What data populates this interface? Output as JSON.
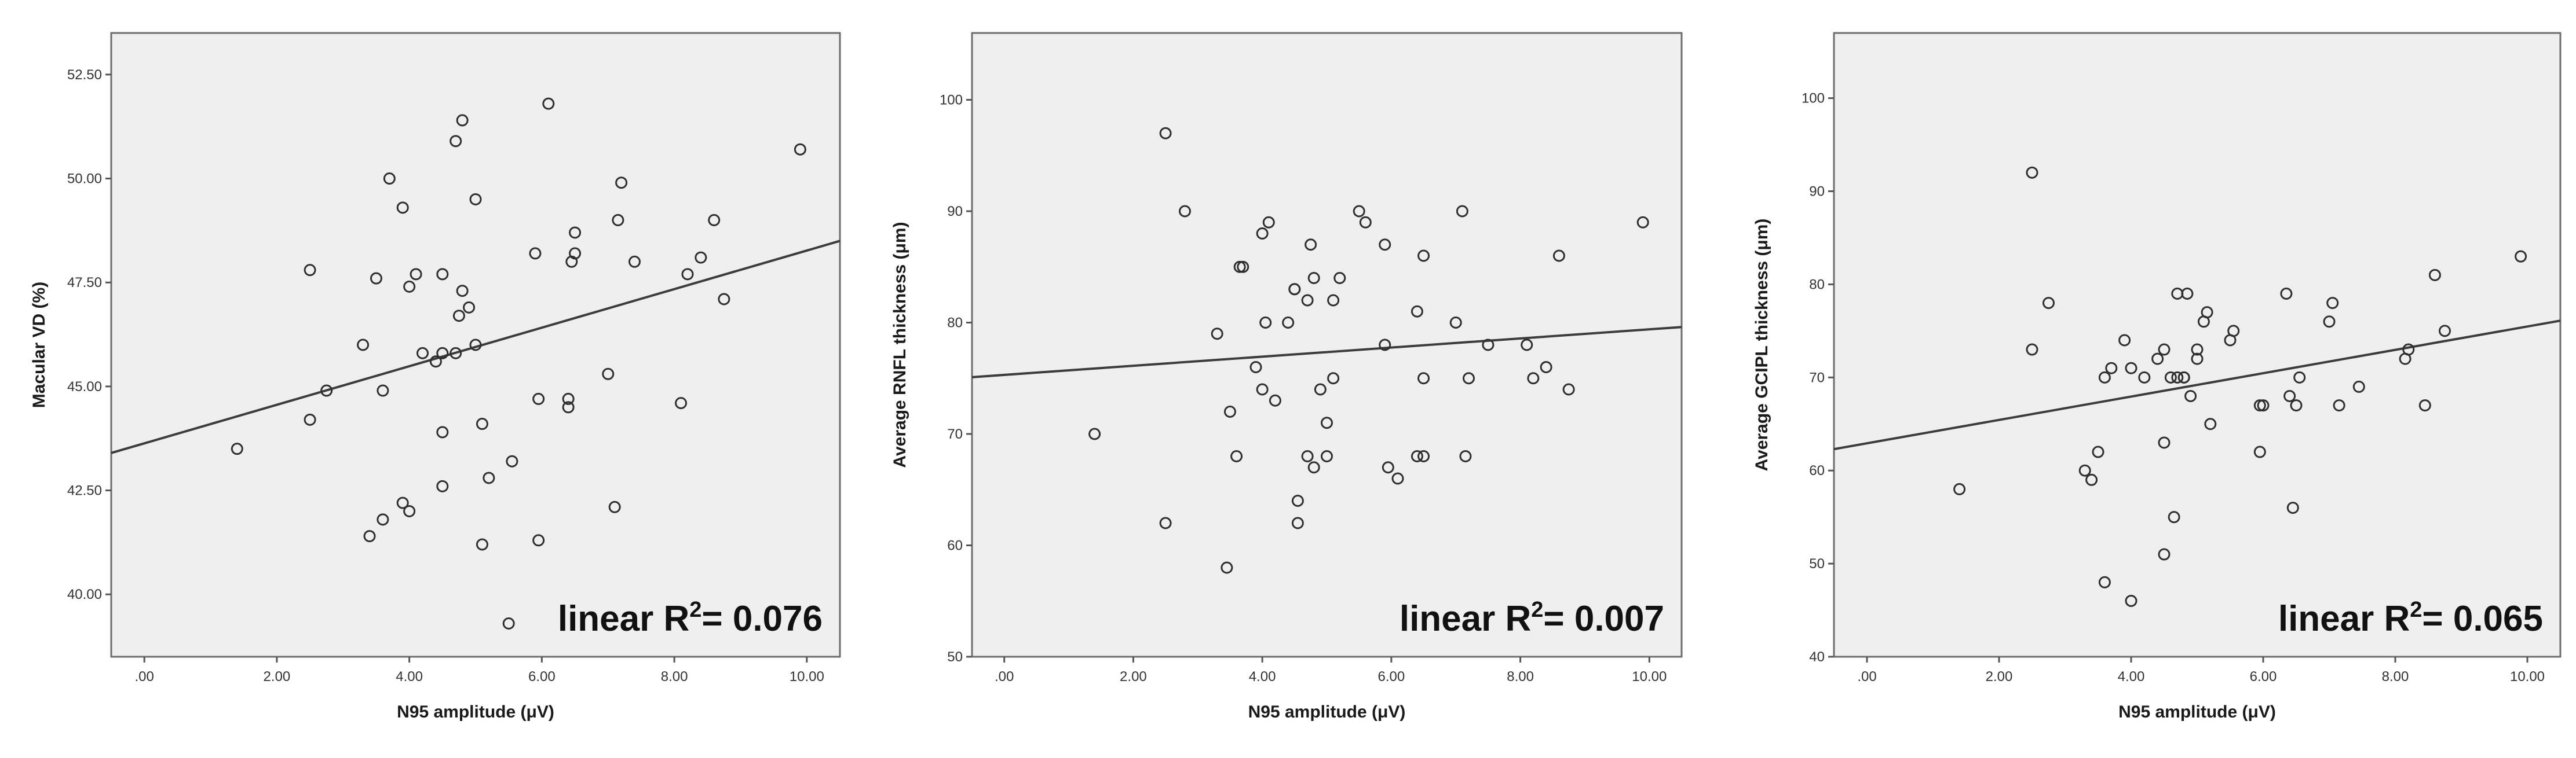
{
  "chart_data": [
    {
      "type": "scatter",
      "xlabel": "N95 amplitude (μV)",
      "ylabel": "Macular VD (%)",
      "xlim": [
        -0.5,
        10.5
      ],
      "ylim": [
        38.5,
        53.5
      ],
      "xticks": [
        ".00",
        "2.00",
        "4.00",
        "6.00",
        "8.00",
        "10.00"
      ],
      "xtick_values": [
        0,
        2,
        4,
        6,
        8,
        10
      ],
      "yticks": [
        "40.00",
        "42.50",
        "45.00",
        "47.50",
        "50.00",
        "52.50"
      ],
      "ytick_values": [
        40,
        42.5,
        45,
        47.5,
        50,
        52.5
      ],
      "annotation": {
        "prefix": "linear R",
        "sup": "2",
        "suffix": "= 0.076"
      },
      "fit_line": {
        "x": [
          -0.5,
          10.5
        ],
        "y": [
          43.4,
          48.5
        ]
      },
      "points": [
        [
          1.4,
          43.5
        ],
        [
          2.5,
          47.8
        ],
        [
          2.5,
          44.2
        ],
        [
          2.75,
          44.9
        ],
        [
          3.3,
          46.0
        ],
        [
          3.4,
          41.4
        ],
        [
          3.5,
          47.6
        ],
        [
          3.6,
          44.9
        ],
        [
          3.6,
          41.8
        ],
        [
          3.7,
          50.0
        ],
        [
          3.9,
          42.2
        ],
        [
          3.9,
          49.3
        ],
        [
          4.0,
          47.4
        ],
        [
          4.0,
          42.0
        ],
        [
          4.1,
          47.7
        ],
        [
          4.2,
          45.8
        ],
        [
          4.4,
          45.6
        ],
        [
          4.5,
          47.7
        ],
        [
          4.5,
          43.9
        ],
        [
          4.5,
          42.6
        ],
        [
          4.5,
          45.8
        ],
        [
          4.7,
          45.8
        ],
        [
          4.7,
          50.9
        ],
        [
          4.75,
          46.7
        ],
        [
          4.8,
          51.4
        ],
        [
          4.8,
          47.3
        ],
        [
          4.9,
          46.9
        ],
        [
          5.0,
          49.5
        ],
        [
          5.0,
          46.0
        ],
        [
          5.1,
          41.2
        ],
        [
          5.1,
          44.1
        ],
        [
          5.2,
          42.8
        ],
        [
          5.5,
          39.3
        ],
        [
          5.55,
          43.2
        ],
        [
          5.9,
          48.2
        ],
        [
          5.95,
          44.7
        ],
        [
          5.95,
          41.3
        ],
        [
          6.1,
          51.8
        ],
        [
          6.4,
          44.7
        ],
        [
          6.4,
          44.5
        ],
        [
          6.45,
          48.0
        ],
        [
          6.5,
          48.2
        ],
        [
          6.5,
          48.7
        ],
        [
          7.0,
          45.3
        ],
        [
          7.1,
          42.1
        ],
        [
          7.15,
          49.0
        ],
        [
          7.2,
          49.9
        ],
        [
          7.4,
          48.0
        ],
        [
          8.1,
          44.6
        ],
        [
          8.2,
          47.7
        ],
        [
          8.4,
          48.1
        ],
        [
          8.6,
          49.0
        ],
        [
          8.75,
          47.1
        ],
        [
          9.9,
          50.7
        ]
      ]
    },
    {
      "type": "scatter",
      "xlabel": "N95 amplitude (μV)",
      "ylabel": "Average RNFL thickness (μm)",
      "xlim": [
        -0.5,
        10.5
      ],
      "ylim": [
        50,
        106
      ],
      "xticks": [
        ".00",
        "2.00",
        "4.00",
        "6.00",
        "8.00",
        "10.00"
      ],
      "xtick_values": [
        0,
        2,
        4,
        6,
        8,
        10
      ],
      "yticks": [
        "50",
        "60",
        "70",
        "80",
        "90",
        "100"
      ],
      "ytick_values": [
        50,
        60,
        70,
        80,
        90,
        100
      ],
      "annotation": {
        "prefix": "linear R",
        "sup": "2",
        "suffix": "= 0.007"
      },
      "fit_line": {
        "x": [
          -0.5,
          10.5
        ],
        "y": [
          75.1,
          79.6
        ]
      },
      "points": [
        [
          1.4,
          70
        ],
        [
          2.5,
          97
        ],
        [
          2.5,
          62
        ],
        [
          2.8,
          90
        ],
        [
          3.3,
          79
        ],
        [
          3.45,
          58
        ],
        [
          3.5,
          72
        ],
        [
          3.6,
          68
        ],
        [
          3.65,
          85
        ],
        [
          3.7,
          85
        ],
        [
          3.9,
          76
        ],
        [
          4.0,
          74
        ],
        [
          4.0,
          88
        ],
        [
          4.05,
          80
        ],
        [
          4.1,
          89
        ],
        [
          4.2,
          73
        ],
        [
          4.4,
          80
        ],
        [
          4.5,
          83
        ],
        [
          4.5,
          83
        ],
        [
          4.55,
          62
        ],
        [
          4.55,
          64
        ],
        [
          4.7,
          82
        ],
        [
          4.7,
          68
        ],
        [
          4.75,
          87
        ],
        [
          4.8,
          67
        ],
        [
          4.8,
          84
        ],
        [
          4.9,
          74
        ],
        [
          5.0,
          71
        ],
        [
          5.0,
          68
        ],
        [
          5.1,
          82
        ],
        [
          5.1,
          75
        ],
        [
          5.2,
          84
        ],
        [
          5.5,
          90
        ],
        [
          5.6,
          89
        ],
        [
          5.9,
          87
        ],
        [
          5.9,
          78
        ],
        [
          5.95,
          67
        ],
        [
          6.1,
          66
        ],
        [
          6.4,
          68
        ],
        [
          6.4,
          81
        ],
        [
          6.5,
          68
        ],
        [
          6.5,
          75
        ],
        [
          6.5,
          86
        ],
        [
          7.0,
          80
        ],
        [
          7.1,
          90
        ],
        [
          7.15,
          68
        ],
        [
          7.2,
          75
        ],
        [
          7.5,
          78
        ],
        [
          8.1,
          78
        ],
        [
          8.2,
          75
        ],
        [
          8.4,
          76
        ],
        [
          8.6,
          86
        ],
        [
          8.75,
          74
        ],
        [
          9.9,
          89
        ]
      ]
    },
    {
      "type": "scatter",
      "xlabel": "N95 amplitude (μV)",
      "ylabel": "Average GCIPL thickness (μm)",
      "xlim": [
        -0.5,
        10.5
      ],
      "ylim": [
        40,
        107
      ],
      "xticks": [
        ".00",
        "2.00",
        "4.00",
        "6.00",
        "8.00",
        "10.00"
      ],
      "xtick_values": [
        0,
        2,
        4,
        6,
        8,
        10
      ],
      "yticks": [
        "40",
        "50",
        "60",
        "70",
        "80",
        "90",
        "100"
      ],
      "ytick_values": [
        40,
        50,
        60,
        70,
        80,
        90,
        100
      ],
      "annotation": {
        "prefix": "linear R",
        "sup": "2",
        "suffix": "= 0.065"
      },
      "fit_line": {
        "x": [
          -0.5,
          10.5
        ],
        "y": [
          62.3,
          76.1
        ]
      },
      "points": [
        [
          1.4,
          58
        ],
        [
          2.5,
          92
        ],
        [
          2.5,
          73
        ],
        [
          2.75,
          78
        ],
        [
          3.3,
          60
        ],
        [
          3.4,
          59
        ],
        [
          3.5,
          62
        ],
        [
          3.6,
          48
        ],
        [
          3.6,
          70
        ],
        [
          3.7,
          71
        ],
        [
          3.9,
          74
        ],
        [
          4.0,
          71
        ],
        [
          4.0,
          46
        ],
        [
          4.2,
          70
        ],
        [
          4.4,
          72
        ],
        [
          4.5,
          63
        ],
        [
          4.5,
          51
        ],
        [
          4.5,
          73
        ],
        [
          4.6,
          70
        ],
        [
          4.65,
          55
        ],
        [
          4.7,
          79
        ],
        [
          4.7,
          70
        ],
        [
          4.8,
          70
        ],
        [
          4.8,
          70
        ],
        [
          4.85,
          79
        ],
        [
          4.9,
          68
        ],
        [
          5.0,
          72
        ],
        [
          5.0,
          73
        ],
        [
          5.1,
          76
        ],
        [
          5.15,
          77
        ],
        [
          5.2,
          65
        ],
        [
          5.5,
          74
        ],
        [
          5.55,
          75
        ],
        [
          5.95,
          67
        ],
        [
          5.95,
          62
        ],
        [
          6.0,
          67
        ],
        [
          6.35,
          79
        ],
        [
          6.4,
          68
        ],
        [
          6.45,
          56
        ],
        [
          6.5,
          67
        ],
        [
          6.55,
          70
        ],
        [
          7.0,
          76
        ],
        [
          7.05,
          78
        ],
        [
          7.15,
          67
        ],
        [
          7.45,
          69
        ],
        [
          8.15,
          72
        ],
        [
          8.2,
          73
        ],
        [
          8.45,
          67
        ],
        [
          8.6,
          81
        ],
        [
          8.75,
          75
        ],
        [
          9.9,
          83
        ]
      ]
    }
  ]
}
